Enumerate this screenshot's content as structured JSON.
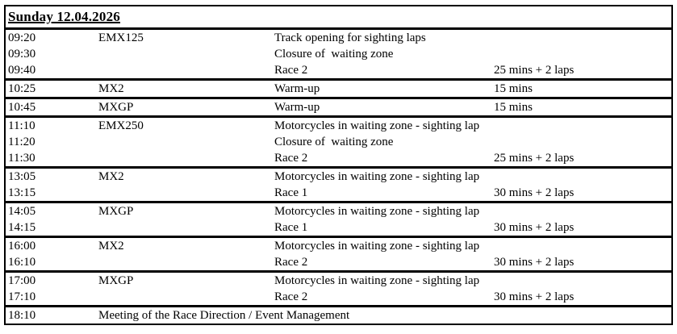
{
  "title": "Sunday 12.04.2026",
  "colors": {
    "text": "#000000",
    "border": "#000000",
    "background": "#ffffff"
  },
  "columns": [
    "time",
    "class",
    "description",
    "duration"
  ],
  "groups": [
    {
      "rows": [
        {
          "time": "09:20",
          "class": "EMX125",
          "description": "Track opening for sighting laps",
          "duration": ""
        },
        {
          "time": "09:30",
          "class": "",
          "description": "Closure of  waiting zone",
          "duration": ""
        },
        {
          "time": "09:40",
          "class": "",
          "description": "Race 2",
          "duration": "25 mins + 2 laps"
        }
      ]
    },
    {
      "rows": [
        {
          "time": "10:25",
          "class": "MX2",
          "description": "Warm-up",
          "duration": "15 mins"
        }
      ]
    },
    {
      "rows": [
        {
          "time": "10:45",
          "class": "MXGP",
          "description": "Warm-up",
          "duration": "15 mins"
        }
      ]
    },
    {
      "rows": [
        {
          "time": "11:10",
          "class": "EMX250",
          "description": "Motorcycles in waiting zone - sighting lap",
          "duration": ""
        },
        {
          "time": "11:20",
          "class": "",
          "description": "Closure of  waiting zone",
          "duration": ""
        },
        {
          "time": "11:30",
          "class": "",
          "description": "Race 2",
          "duration": "25 mins + 2 laps"
        }
      ]
    },
    {
      "rows": [
        {
          "time": "13:05",
          "class": "MX2",
          "description": "Motorcycles in waiting zone - sighting lap",
          "duration": ""
        },
        {
          "time": "13:15",
          "class": "",
          "description": "Race 1",
          "duration": "30 mins + 2 laps"
        }
      ]
    },
    {
      "rows": [
        {
          "time": "14:05",
          "class": "MXGP",
          "description": "Motorcycles in waiting zone - sighting lap",
          "duration": ""
        },
        {
          "time": "14:15",
          "class": "",
          "description": "Race 1",
          "duration": "30 mins + 2 laps"
        }
      ]
    },
    {
      "rows": [
        {
          "time": "16:00",
          "class": "MX2",
          "description": "Motorcycles in waiting zone - sighting lap",
          "duration": ""
        },
        {
          "time": "16:10",
          "class": "",
          "description": "Race 2",
          "duration": "30 mins + 2 laps"
        }
      ]
    },
    {
      "rows": [
        {
          "time": "17:00",
          "class": "MXGP",
          "description": "Motorcycles in waiting zone - sighting lap",
          "duration": ""
        },
        {
          "time": "17:10",
          "class": "",
          "description": "Race 2",
          "duration": "30 mins + 2 laps"
        }
      ]
    },
    {
      "rows": [
        {
          "time": "18:10",
          "class": "",
          "description": "Meeting of the Race Direction / Event Management",
          "duration": ""
        }
      ]
    }
  ]
}
